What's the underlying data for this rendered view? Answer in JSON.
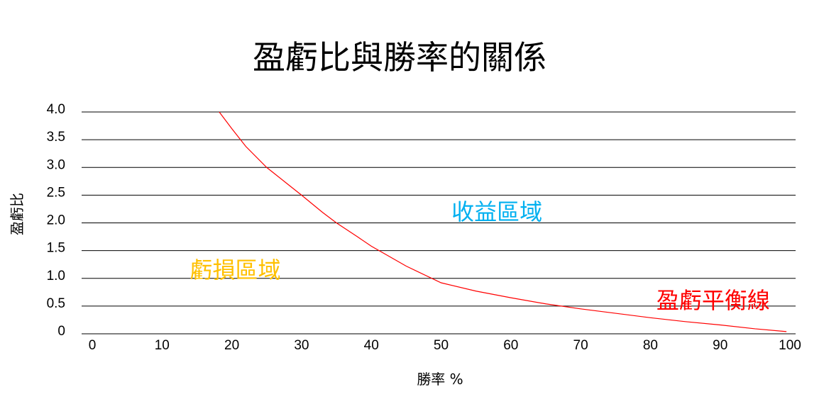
{
  "chart_data": {
    "type": "line",
    "title": "盈虧比與勝率的關係",
    "xlabel": "勝率 %",
    "ylabel": "盈虧比",
    "x_ticks": [
      "0",
      "10",
      "20",
      "30",
      "40",
      "50",
      "60",
      "70",
      "80",
      "90",
      "100"
    ],
    "y_ticks": [
      "0",
      "0.5",
      "1.0",
      "1.5",
      "2.0",
      "2.5",
      "3.0",
      "3.5",
      "4.0"
    ],
    "xlim": [
      0,
      100
    ],
    "ylim": [
      0,
      4
    ],
    "grid": "horizontal",
    "legend": "none",
    "series": [
      {
        "name": "盈虧平衡線",
        "color": "#ff0000",
        "x": [
          18.2,
          20,
          22,
          25,
          28,
          30,
          33,
          35,
          38,
          40,
          45,
          50,
          55,
          60,
          65,
          70,
          75,
          80,
          85,
          90,
          95,
          99.5
        ],
        "y": [
          4.0,
          3.7,
          3.38,
          3.0,
          2.7,
          2.5,
          2.19,
          2.0,
          1.75,
          1.58,
          1.22,
          0.92,
          0.77,
          0.65,
          0.54,
          0.45,
          0.37,
          0.29,
          0.22,
          0.16,
          0.09,
          0.04
        ]
      }
    ],
    "annotations": [
      {
        "text": "收益區域",
        "x": 58,
        "y": 2.2,
        "color": "#00b0f0"
      },
      {
        "text": "虧損區域",
        "x": 20.5,
        "y": 1.15,
        "color": "#ffc000"
      },
      {
        "text": "盈虧平衡線",
        "x": 89,
        "y": 0.6,
        "color": "#ff0000"
      }
    ]
  }
}
